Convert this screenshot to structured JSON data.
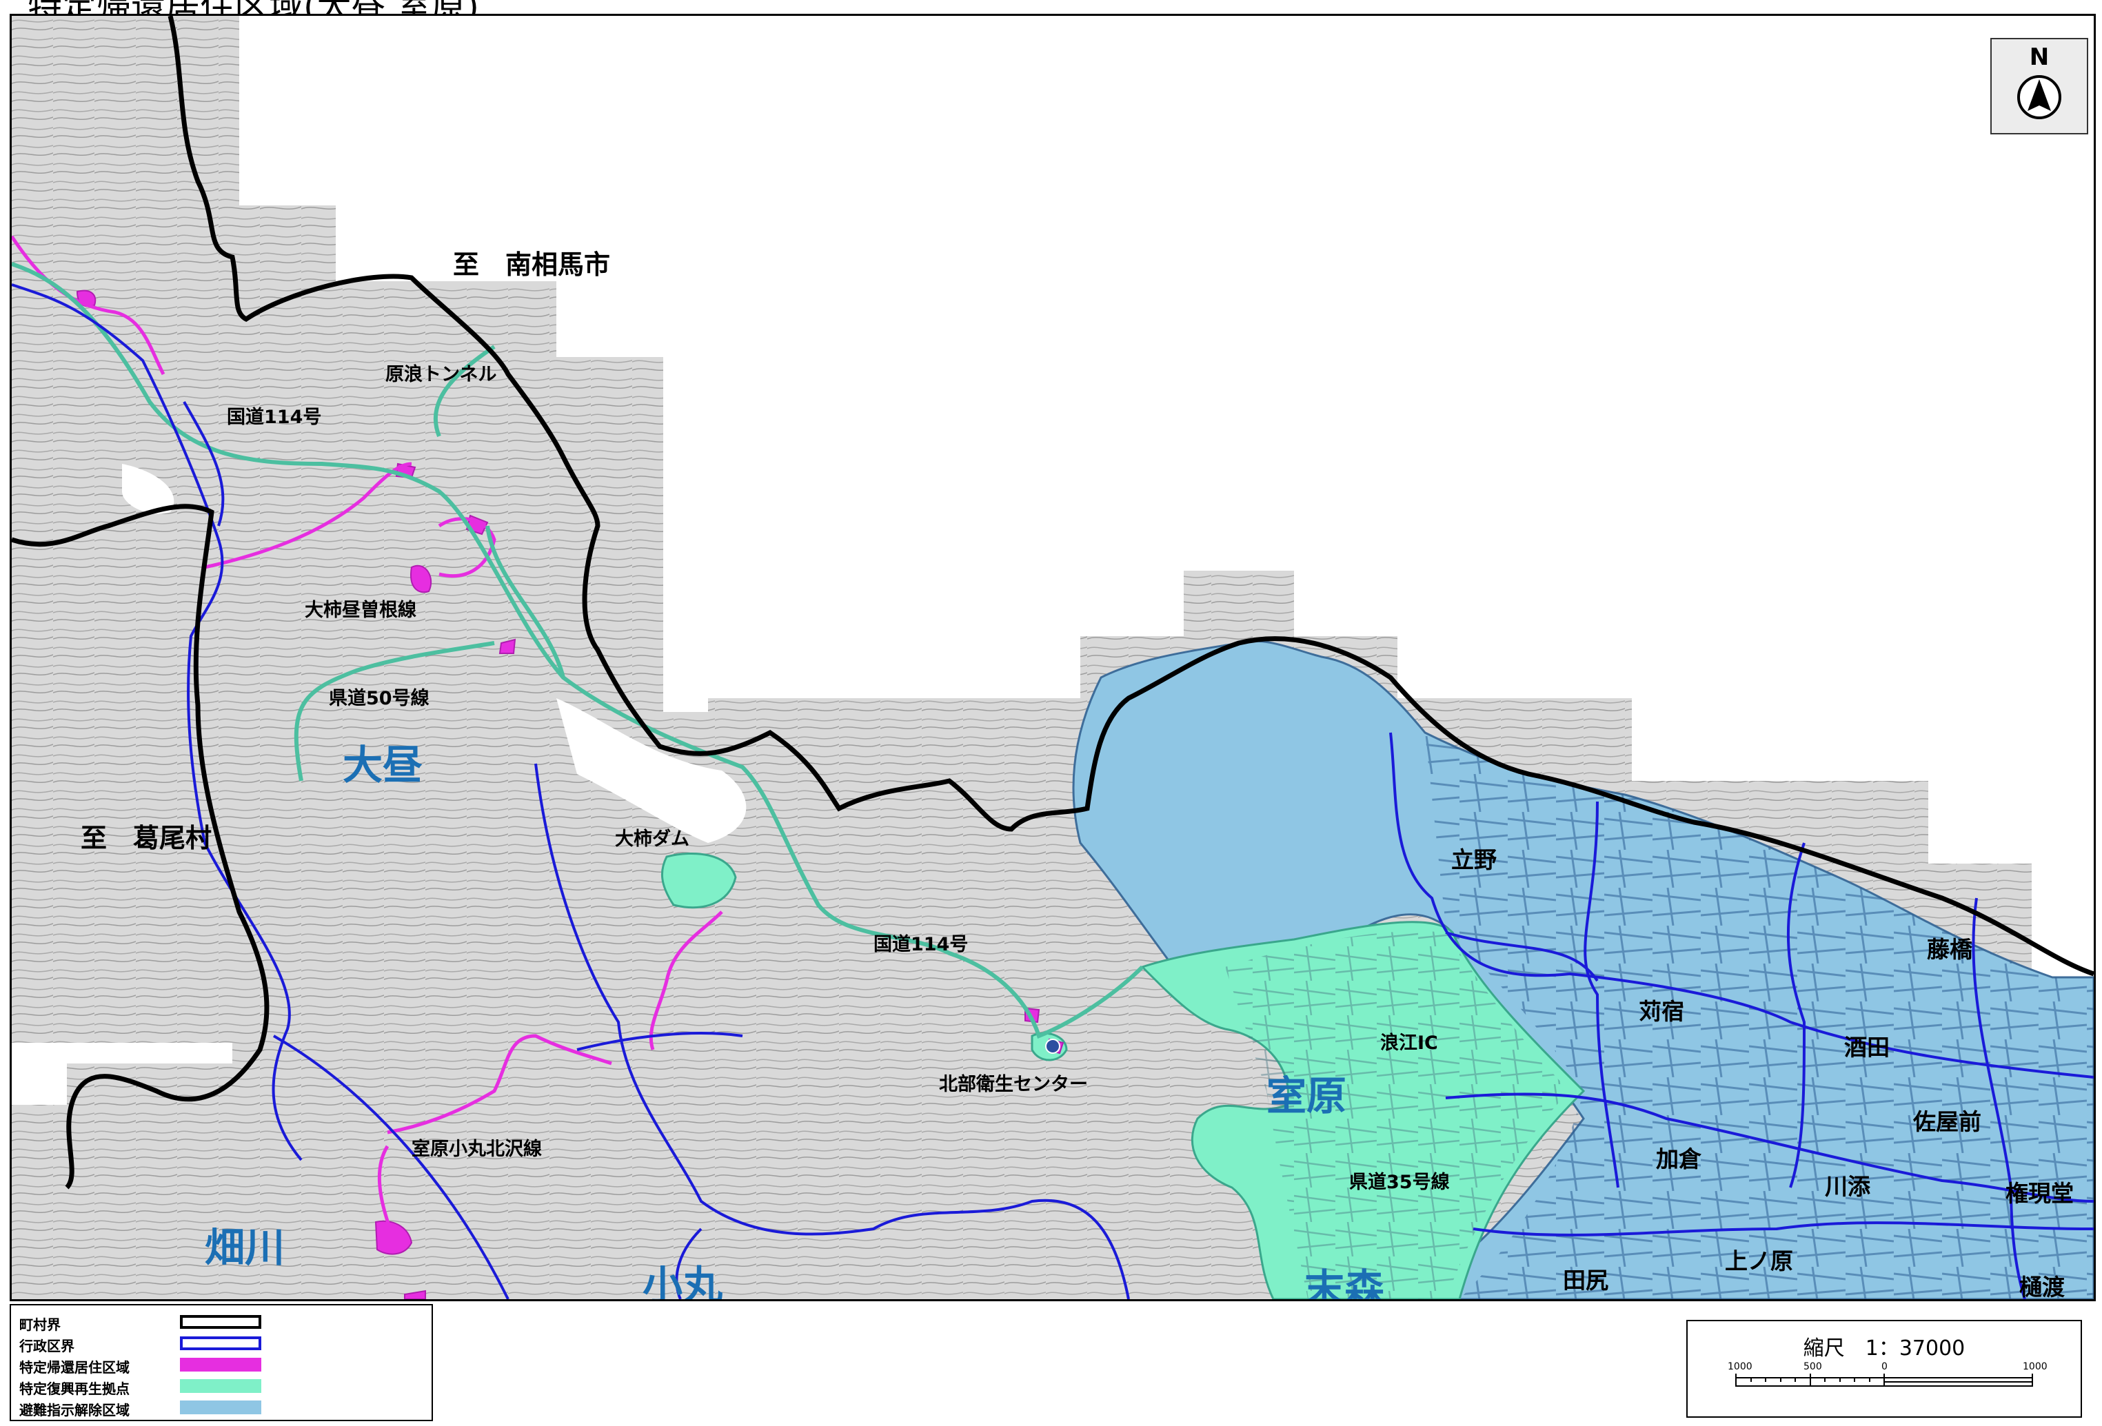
{
  "map": {
    "title": "特定帰還居住区域(大昼 室原)",
    "north": "N",
    "direction_labels": {
      "minamisoma": "至　南相馬市",
      "katsurao": "至　葛尾村"
    },
    "areas": {
      "oohiru": "大昼",
      "murohara": "室原",
      "hatakawa": "畑川",
      "komaru": "小丸",
      "suemori": "末森"
    },
    "roads": {
      "route114_a": "国道114号",
      "route114_b": "国道114号",
      "pref50": "県道50号線",
      "pref35": "県道35号線",
      "ookaki_hirusone": "大柿昼曽根線",
      "murohara_komaru": "室原小丸北沢線",
      "haro_tunnel": "原浪トンネル"
    },
    "places": {
      "ookaki_dam": "大柿ダム",
      "hokubu_center": "北部衛生センター",
      "namie_ic": "浪江IC",
      "tateno": "立野",
      "karijuku": "苅宿",
      "fujihashi": "藤橋",
      "sakata": "酒田",
      "sayamae": "佐屋前",
      "kagura": "加倉",
      "kawazoe": "川添",
      "gongendo": "権現堂",
      "tajiri": "田尻",
      "uenohara": "上ノ原",
      "hiwatari": "樋渡"
    },
    "legend": [
      {
        "label": "町村界",
        "swatch": "border",
        "color": "#000000"
      },
      {
        "label": "行政区界",
        "swatch": "border",
        "color": "#1a1ad8"
      },
      {
        "label": "特定帰還居住区域",
        "swatch": "fill",
        "color": "#e62ee0"
      },
      {
        "label": "特定復興再生拠点",
        "swatch": "fill",
        "color": "#7ff0c8"
      },
      {
        "label": "避難指示解除区域",
        "swatch": "fill",
        "color": "#8fc6e4"
      }
    ],
    "scale": {
      "label": "縮尺　1：37000",
      "ticks": [
        "1000",
        "500",
        "0",
        "1000"
      ]
    }
  }
}
